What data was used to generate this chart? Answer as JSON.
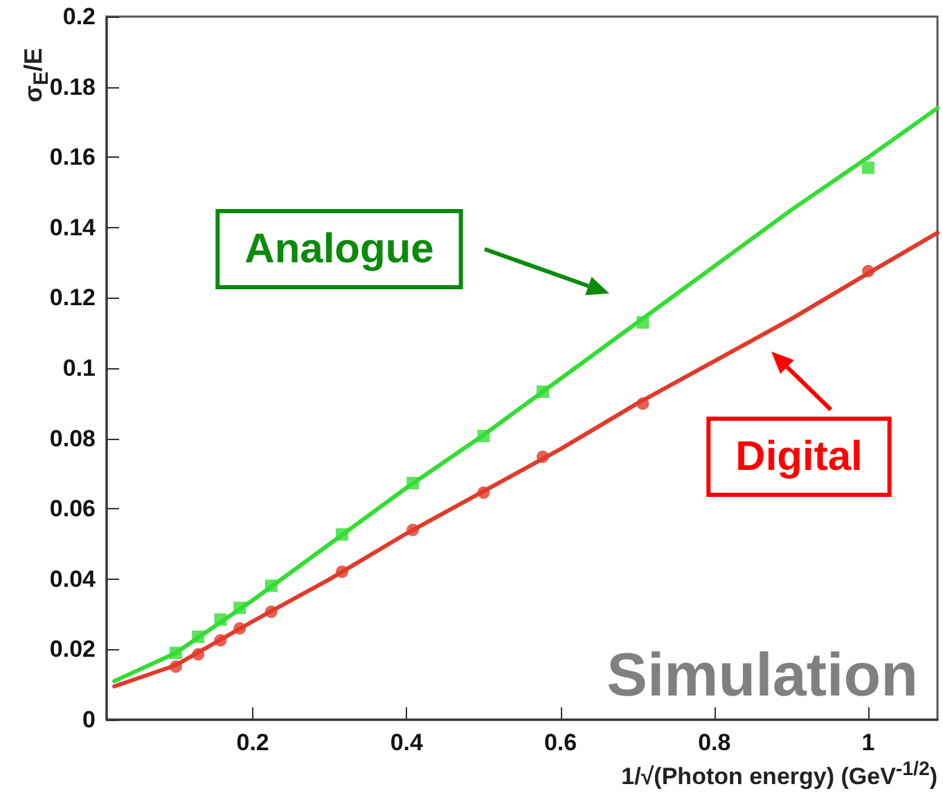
{
  "chart_data": {
    "type": "scatter",
    "xlabel": "1/√(Photon energy) (GeV$^{-1/2}$)",
    "ylabel": "σ$_{E}$/E",
    "series": [
      {
        "type": "line",
        "color": "#33dd33",
        "marker": "none",
        "x": [
          0.02,
          0.1,
          0.2,
          0.3,
          0.4,
          0.5,
          0.6,
          0.7,
          0.8,
          0.9,
          1.0,
          1.09
        ],
        "values": [
          0.011,
          0.019,
          0.034,
          0.05,
          0.066,
          0.081,
          0.097,
          0.113,
          0.129,
          0.145,
          0.16,
          0.174
        ]
      },
      {
        "type": "line",
        "color": "#e23a2a",
        "marker": "none",
        "x": [
          0.02,
          0.1,
          0.2,
          0.3,
          0.4,
          0.5,
          0.6,
          0.7,
          0.8,
          0.9,
          1.0,
          1.09
        ],
        "values": [
          0.0095,
          0.0155,
          0.028,
          0.04,
          0.053,
          0.065,
          0.077,
          0.09,
          0.102,
          0.114,
          0.127,
          0.1385
        ]
      },
      {
        "color": "#33dd33",
        "marker": "square",
        "x": [
          0.1,
          0.129,
          0.158,
          0.183,
          0.224,
          0.316,
          0.408,
          0.5,
          0.577,
          0.707,
          1.0
        ],
        "values": [
          0.019,
          0.0236,
          0.0285,
          0.0318,
          0.0381,
          0.0527,
          0.0673,
          0.0807,
          0.0933,
          0.113,
          0.157
        ]
      },
      {
        "color": "#e23a2a",
        "marker": "circle",
        "x": [
          0.1,
          0.129,
          0.158,
          0.183,
          0.224,
          0.316,
          0.408,
          0.5,
          0.577,
          0.707,
          1.0
        ],
        "values": [
          0.0151,
          0.0186,
          0.0226,
          0.026,
          0.0307,
          0.0421,
          0.054,
          0.0646,
          0.0748,
          0.0899,
          0.1276
        ]
      }
    ],
    "xlim": [
      0.01,
      1.09
    ],
    "xticks": [
      0.2,
      0.4,
      0.6,
      0.8,
      1
    ],
    "ylim": [
      0,
      0.2
    ],
    "yticks": [
      0,
      0.02,
      0.04,
      0.06,
      0.08,
      0.1,
      0.12,
      0.14,
      0.16,
      0.18,
      0.2
    ],
    "grid": false,
    "annotations": [
      "Analogue",
      "Digital",
      "Simulation"
    ]
  }
}
